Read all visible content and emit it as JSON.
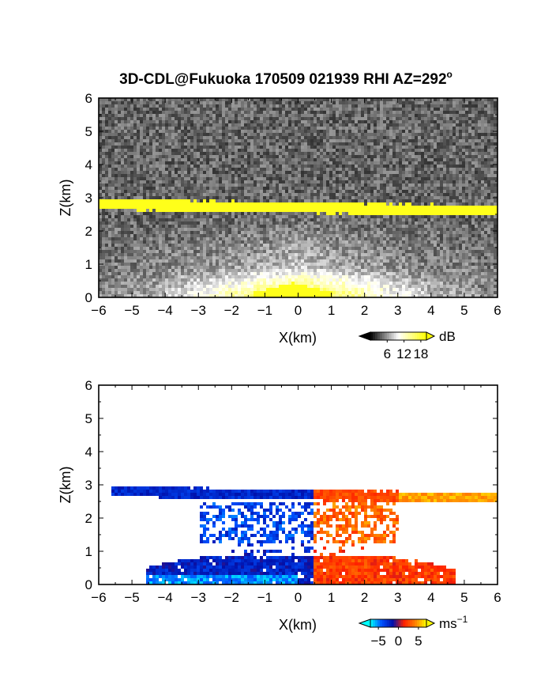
{
  "title": "3D-CDL@Fukuoka 170509 021939 RHI AZ=292",
  "title_sup": "o",
  "chart_data": [
    {
      "type": "heatmap",
      "quantity": "reflectivity",
      "xlabel": "X(km)",
      "ylabel": "Z(km)",
      "xlim": [
        -6,
        6
      ],
      "ylim": [
        0,
        6
      ],
      "xticks": [
        "-6",
        "-5",
        "-4",
        "-3",
        "-2",
        "-1",
        "0",
        "1",
        "2",
        "3",
        "4",
        "5",
        "6"
      ],
      "yticks": [
        "0",
        "1",
        "2",
        "3",
        "4",
        "5",
        "6"
      ],
      "colorbar": {
        "unit": "dB",
        "ticks": [
          "6",
          "12",
          "18"
        ],
        "range": [
          0,
          20
        ],
        "colors": [
          "#000000",
          "#ffffff",
          "#ffff00"
        ]
      },
      "features": {
        "cloud_layer_height_km": [
          2.8,
          2.6
        ],
        "cloud_layer_x_km": [
          -6,
          6
        ],
        "near_surface_peak_x_km": [
          -1.3,
          1.0
        ],
        "near_surface_peak_height_km": 0.45
      }
    },
    {
      "type": "heatmap",
      "quantity": "doppler velocity",
      "xlabel": "X(km)",
      "ylabel": "Z(km)",
      "xlim": [
        -6,
        6
      ],
      "ylim": [
        0,
        6
      ],
      "xticks": [
        "-6",
        "-5",
        "-4",
        "-3",
        "-2",
        "-1",
        "0",
        "1",
        "2",
        "3",
        "4",
        "5",
        "6"
      ],
      "yticks": [
        "0",
        "1",
        "2",
        "3",
        "4",
        "5",
        "6"
      ],
      "colorbar": {
        "unit": "ms",
        "unit_sup": "−1",
        "ticks": [
          "−5",
          "0",
          "5"
        ],
        "range": [
          -7,
          7
        ],
        "colors": [
          "#00ffff",
          "#0050ff",
          "#0010aa",
          "#ff2000",
          "#ff8000",
          "#ffff00"
        ]
      },
      "features": {
        "upper_layer_height_km": [
          2.8,
          2.6
        ],
        "lower_layer_top_km": 0.9,
        "lower_layer_x_km": [
          -4.6,
          4.7
        ],
        "sign_change_x_km": 0.5
      }
    }
  ]
}
